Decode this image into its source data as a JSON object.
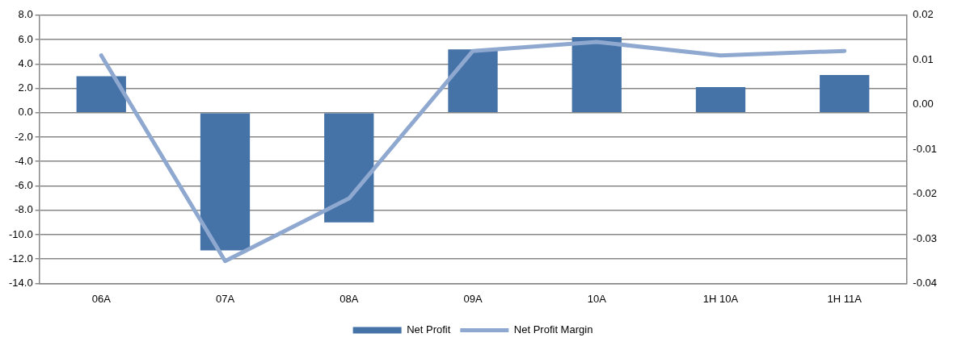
{
  "chart_data": {
    "type": "bar",
    "categories": [
      "06A",
      "07A",
      "08A",
      "09A",
      "10A",
      "1H 10A",
      "1H 11A"
    ],
    "series": [
      {
        "name": "Net Profit",
        "color": "#4572a7",
        "values": [
          3.0,
          -11.3,
          -9.0,
          5.2,
          6.2,
          2.1,
          3.1
        ]
      },
      {
        "name": "Net Profit Margin",
        "type": "line",
        "axis": "y2",
        "color": "#8fa8d0",
        "values": [
          0.011,
          -0.035,
          -0.021,
          0.012,
          0.014,
          0.011,
          0.012
        ]
      }
    ],
    "ylim": [
      -14,
      8
    ],
    "yticks": [
      {
        "value": -14,
        "label": "-14.0"
      },
      {
        "value": -12,
        "label": "-12.0"
      },
      {
        "value": -10,
        "label": "-10.0"
      },
      {
        "value": -8,
        "label": "-8.0"
      },
      {
        "value": -6,
        "label": "-6.0"
      },
      {
        "value": -4,
        "label": "-4.0"
      },
      {
        "value": -2,
        "label": "-2.0"
      },
      {
        "value": 0,
        "label": "0.0"
      },
      {
        "value": 2,
        "label": "2.0"
      },
      {
        "value": 4,
        "label": "4.0"
      },
      {
        "value": 6,
        "label": "6.0"
      },
      {
        "value": 8,
        "label": "8.0"
      }
    ],
    "y2lim": [
      -0.04,
      0.02
    ],
    "y2ticks": [
      -0.04,
      -0.03,
      -0.02,
      -0.01,
      {
        "value": 0,
        "label": "0.00"
      },
      0.01,
      0.02
    ],
    "grid": "y",
    "legend": "bottom",
    "marker": "none",
    "line_style": "solid"
  }
}
